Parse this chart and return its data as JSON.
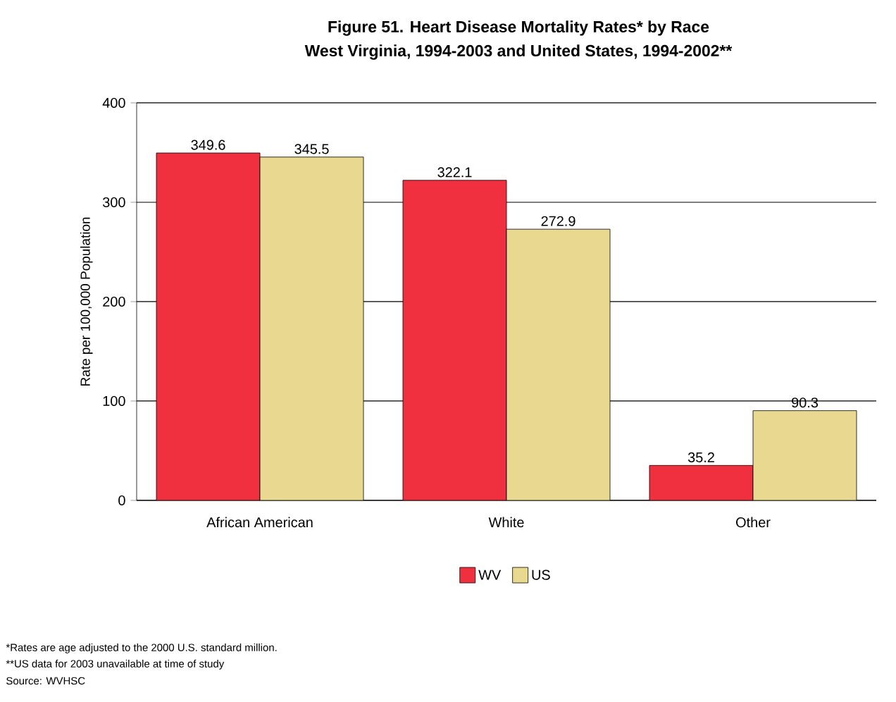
{
  "chart_data": {
    "type": "bar",
    "title": "Figure 51. Heart Disease Mortality Rates* by Race",
    "subtitle": "West Virginia, 1994-2003 and United States, 1994-2002**",
    "ylabel": "Rate per 100,000 Population",
    "categories": [
      "African American",
      "White",
      "Other"
    ],
    "series": [
      {
        "name": "WV",
        "color": "#f0303f",
        "values": [
          349.6,
          322.1,
          35.2
        ]
      },
      {
        "name": "US",
        "color": "#e8d890",
        "values": [
          345.5,
          272.9,
          90.3
        ]
      }
    ],
    "ylim": [
      0,
      400
    ],
    "yticks": [
      0,
      100,
      200,
      300,
      400
    ],
    "grid": "y",
    "legend": "bottom",
    "data_labels": true,
    "annotations": [
      "*Rates are age adjusted to the 2000 U.S. standard million.",
      "**US data for 2003 unavailable at time of study",
      "Source: WVHSC"
    ]
  }
}
